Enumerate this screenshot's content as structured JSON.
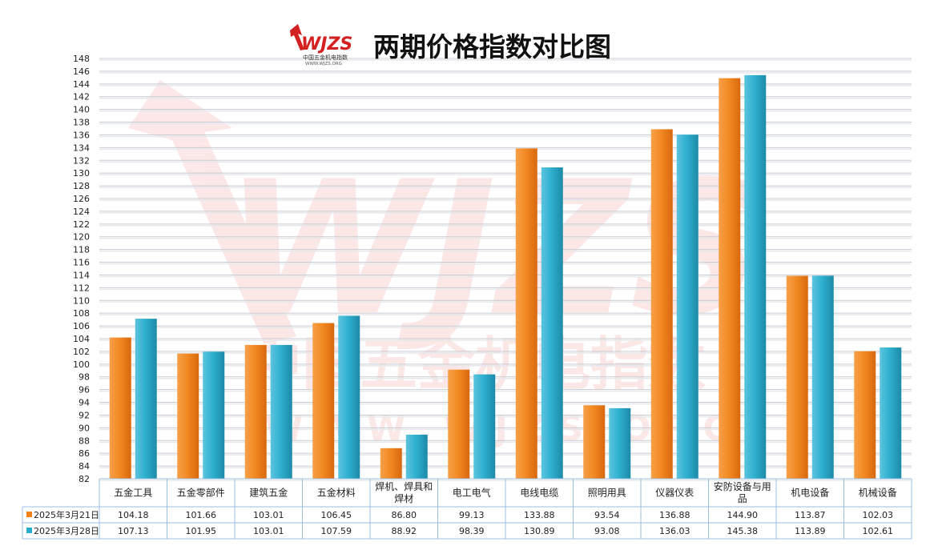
{
  "title": "两期价格指数对比图",
  "logo": {
    "mark": "WJZS",
    "subtitle": "中国五金机电指数",
    "url": "WWW.WJZS.ORG"
  },
  "watermark": {
    "text": "中国五金机电指数",
    "url": "W W W . W J Z S . O R G"
  },
  "colors": {
    "series1": "#f2811c",
    "series2": "#2aaccc",
    "grid": "#c8ccd4",
    "table_border": "#9bbfe0",
    "watermark": "#e83030"
  },
  "chart_data": {
    "type": "bar",
    "categories": [
      "五金工具",
      "五金零部件",
      "建筑五金",
      "五金材料",
      "焊机、焊具和焊材",
      "电工电气",
      "电线电缆",
      "照明用具",
      "仪器仪表",
      "安防设备与用品",
      "机电设备",
      "机械设备"
    ],
    "series": [
      {
        "name": "2025年3月21日",
        "values": [
          104.18,
          101.66,
          103.01,
          106.45,
          86.8,
          99.13,
          133.88,
          93.54,
          136.88,
          144.9,
          113.87,
          102.03
        ]
      },
      {
        "name": "2025年3月28日",
        "values": [
          107.13,
          101.95,
          103.01,
          107.59,
          88.92,
          98.39,
          130.89,
          93.08,
          136.03,
          145.38,
          113.89,
          102.61
        ]
      }
    ],
    "ylim": [
      82,
      148
    ],
    "ytick_step": 2,
    "grid": true,
    "legend": "data-table",
    "value_labels": {
      "series1": [
        "104.18",
        "101.66",
        "103.01",
        "106.45",
        "86.80",
        "99.13",
        "133.88",
        "93.54",
        "136.88",
        "144.90",
        "113.87",
        "102.03"
      ],
      "series2": [
        "107.13",
        "101.95",
        "103.01",
        "107.59",
        "88.92",
        "98.39",
        "130.89",
        "93.08",
        "136.03",
        "145.38",
        "113.89",
        "102.61"
      ]
    }
  }
}
